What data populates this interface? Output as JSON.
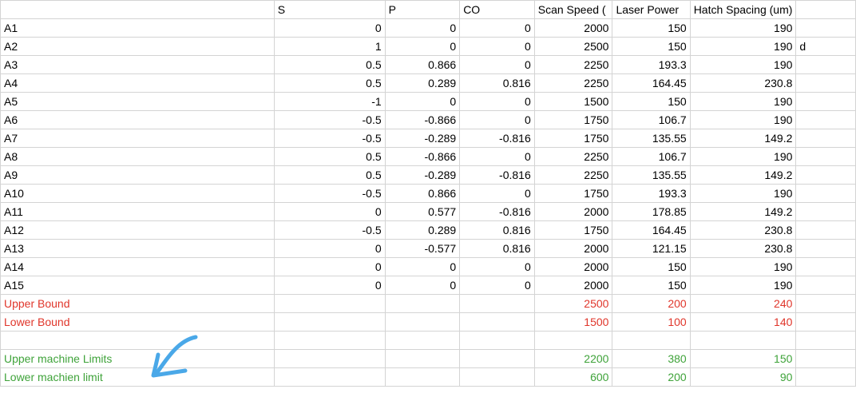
{
  "header": [
    "",
    "S",
    "P",
    "CO",
    "Scan Speed (",
    "Laser Power",
    "Hatch Spacing (um)",
    ""
  ],
  "rows": [
    {
      "cells": [
        "A1",
        "0",
        "0",
        "0",
        "2000",
        "150",
        "190",
        ""
      ]
    },
    {
      "cells": [
        "A2",
        "1",
        "0",
        "0",
        "2500",
        "150",
        "190",
        "d"
      ]
    },
    {
      "cells": [
        "A3",
        "0.5",
        "0.866",
        "0",
        "2250",
        "193.3",
        "190",
        ""
      ]
    },
    {
      "cells": [
        "A4",
        "0.5",
        "0.289",
        "0.816",
        "2250",
        "164.45",
        "230.8",
        ""
      ]
    },
    {
      "cells": [
        "A5",
        "-1",
        "0",
        "0",
        "1500",
        "150",
        "190",
        ""
      ]
    },
    {
      "cells": [
        "A6",
        "-0.5",
        "-0.866",
        "0",
        "1750",
        "106.7",
        "190",
        ""
      ]
    },
    {
      "cells": [
        "A7",
        "-0.5",
        "-0.289",
        "-0.816",
        "1750",
        "135.55",
        "149.2",
        ""
      ]
    },
    {
      "cells": [
        "A8",
        "0.5",
        "-0.866",
        "0",
        "2250",
        "106.7",
        "190",
        ""
      ]
    },
    {
      "cells": [
        "A9",
        "0.5",
        "-0.289",
        "-0.816",
        "2250",
        "135.55",
        "149.2",
        ""
      ]
    },
    {
      "cells": [
        "A10",
        "-0.5",
        "0.866",
        "0",
        "1750",
        "193.3",
        "190",
        ""
      ]
    },
    {
      "cells": [
        "A11",
        "0",
        "0.577",
        "-0.816",
        "2000",
        "178.85",
        "149.2",
        ""
      ]
    },
    {
      "cells": [
        "A12",
        "-0.5",
        "0.289",
        "0.816",
        "1750",
        "164.45",
        "230.8",
        ""
      ]
    },
    {
      "cells": [
        "A13",
        "0",
        "-0.577",
        "0.816",
        "2000",
        "121.15",
        "230.8",
        ""
      ]
    },
    {
      "cells": [
        "A14",
        "0",
        "0",
        "0",
        "2000",
        "150",
        "190",
        ""
      ]
    },
    {
      "cells": [
        "A15",
        "0",
        "0",
        "0",
        "2000",
        "150",
        "190",
        ""
      ]
    },
    {
      "cells": [
        "Upper Bound",
        "",
        "",
        "",
        "2500",
        "200",
        "240",
        ""
      ],
      "style": "red"
    },
    {
      "cells": [
        "Lower Bound",
        "",
        "",
        "",
        "1500",
        "100",
        "140",
        ""
      ],
      "style": "red"
    },
    {
      "cells": [
        "",
        "",
        "",
        "",
        "",
        "",
        "",
        ""
      ]
    },
    {
      "cells": [
        "Upper machine Limits",
        "",
        "",
        "",
        "2200",
        "380",
        "150",
        ""
      ],
      "style": "green"
    },
    {
      "cells": [
        "Lower machien limit",
        "",
        "",
        "",
        "600",
        "200",
        "90",
        ""
      ],
      "style": "green"
    }
  ],
  "colors": {
    "bound": "#e0362b",
    "machine": "#3fa33a",
    "arrow": "#4aa8e8",
    "gridline": "#d4d4d4"
  },
  "annotation": {
    "icon": "hand-drawn-arrow-icon"
  }
}
